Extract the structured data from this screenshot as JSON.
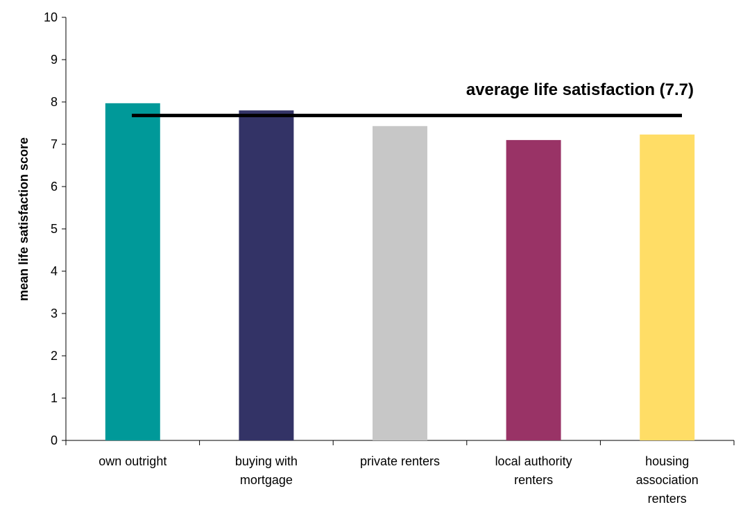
{
  "chart_data": {
    "type": "bar",
    "categories": [
      [
        "own outright"
      ],
      [
        "buying with",
        "mortgage"
      ],
      [
        "private renters"
      ],
      [
        "local authority",
        "renters"
      ],
      [
        "housing",
        "association",
        "renters"
      ]
    ],
    "values": [
      7.97,
      7.8,
      7.43,
      7.1,
      7.23
    ],
    "colors": [
      "#009999",
      "#333366",
      "#C7C7C7",
      "#993366",
      "#FFDD66"
    ],
    "title": "",
    "xlabel": "",
    "ylabel": "mean life satisfaction score",
    "ylim": [
      0,
      10
    ],
    "yticks": [
      "0",
      "1",
      "2",
      "3",
      "4",
      "5",
      "6",
      "7",
      "8",
      "9",
      "10"
    ],
    "grid": false,
    "legend": "none",
    "reference_line": {
      "value": 7.68,
      "label": "average life satisfaction (7.7)",
      "color": "#000000"
    }
  }
}
